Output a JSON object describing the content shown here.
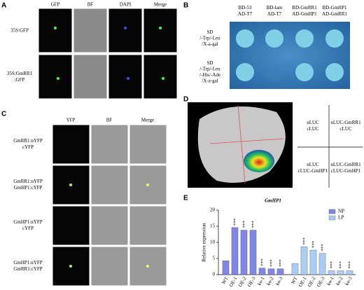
{
  "panels": {
    "a": {
      "label": "A",
      "columns": [
        "GFP",
        "BF",
        "DAPI",
        "Merge"
      ],
      "rows": [
        [
          "35S:GFP"
        ],
        [
          "35S:GmRR1",
          ":GFP"
        ]
      ]
    },
    "b": {
      "label": "B",
      "columns": [
        [
          "BD-53",
          "AD-T7"
        ],
        [
          "BD-lam",
          "AD-T7"
        ],
        [
          "BD-GmRR1",
          "AD-GmHP1"
        ],
        [
          "BD-GmHP1",
          "AD-GmRR1"
        ]
      ],
      "rows": [
        [
          "SD",
          "/-Trp/-Leu",
          "/X-a-gal"
        ],
        [
          "SD",
          "/-Trp/-Leu",
          "/-His/-Ade",
          "/X-a-gal"
        ]
      ]
    },
    "c": {
      "label": "C",
      "columns": [
        "YFP",
        "BF",
        "Merge"
      ],
      "rows": [
        [
          "GmRR1:nYFP",
          "cYFP"
        ],
        [
          "GmRR1:nYFP",
          "GmHP1:cYFP"
        ],
        [
          "GmHP1:nYFP",
          "cYFP"
        ],
        [
          "GmHP1:nYFP",
          "GmRR1:cYFP"
        ]
      ]
    },
    "d": {
      "label": "D",
      "cells": [
        [
          "nLUC",
          "cLUC"
        ],
        [
          "nLUC-GmRR1",
          "cLUC"
        ],
        [
          "nLUC",
          "cLUC-GmHP1"
        ],
        [
          "nLUC-GmRR1",
          "cLUC-GmHP1"
        ]
      ]
    },
    "e": {
      "label": "E"
    }
  },
  "chart_data": {
    "type": "bar",
    "title": "GmHP1",
    "y_label": "Relative expression",
    "categories": [
      "WT",
      "OE-1",
      "OE-2",
      "OE-3",
      "ko-1",
      "ko-2",
      "ko-3",
      "WT",
      "OE-1",
      "OE-2",
      "OE-3",
      "ko-1",
      "ko-2",
      "ko-3"
    ],
    "series": [
      {
        "name": "NP",
        "color": "#7f86e6",
        "values": [
          4.3,
          14.6,
          13.8,
          13.8,
          2.0,
          1.8,
          1.8,
          null,
          null,
          null,
          null,
          null,
          null,
          null
        ],
        "significance": [
          null,
          "***",
          "***",
          "***",
          "***",
          "***",
          "***",
          null,
          null,
          null,
          null,
          null,
          null,
          null
        ]
      },
      {
        "name": "LP",
        "color": "#a9cdf3",
        "values": [
          null,
          null,
          null,
          null,
          null,
          null,
          null,
          3.4,
          8.6,
          7.6,
          6.6,
          1.2,
          1.2,
          1.2
        ],
        "significance": [
          null,
          null,
          null,
          null,
          null,
          null,
          null,
          null,
          "***",
          "***",
          "***",
          "***",
          "***",
          "***"
        ]
      }
    ],
    "ylim": [
      0,
      20
    ],
    "yticks": [
      0,
      5,
      10,
      15,
      20
    ],
    "legend": "top-right"
  }
}
